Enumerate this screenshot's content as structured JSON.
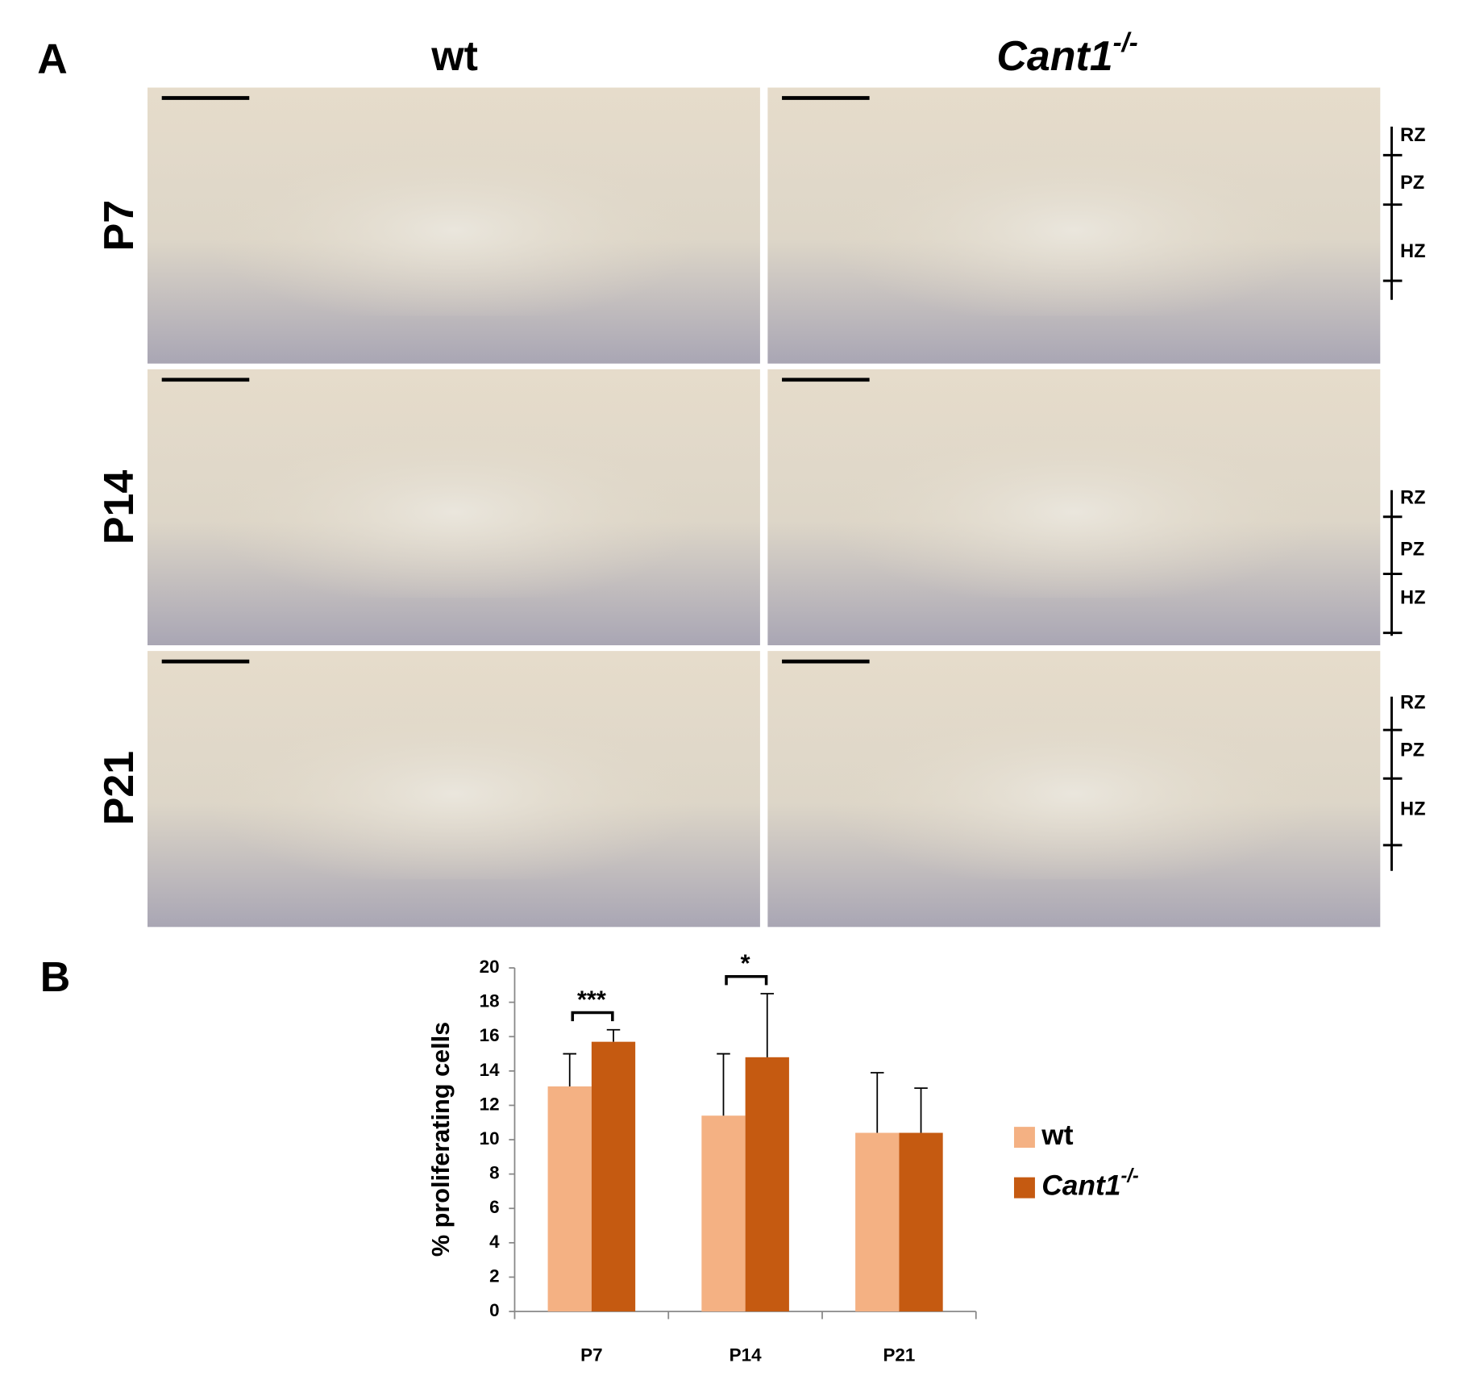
{
  "panel_a": {
    "label": "A",
    "columns": [
      {
        "text": "wt"
      },
      {
        "text": "Cant1",
        "sup": "-/-"
      }
    ],
    "rows": [
      "P7",
      "P14",
      "P21"
    ],
    "zones": [
      [
        "RZ",
        "PZ",
        "HZ"
      ],
      [
        "RZ",
        "PZ",
        "HZ"
      ],
      [
        "RZ",
        "PZ",
        "HZ"
      ]
    ]
  },
  "panel_b": {
    "label": "B"
  },
  "chart_data": {
    "type": "bar",
    "y_label": "% proliferating cells",
    "categories": [
      "P7",
      "P14",
      "P21"
    ],
    "series": [
      {
        "name": "wt",
        "color": "#f4b183",
        "values": [
          13.1,
          11.4,
          10.4
        ],
        "errors": [
          1.9,
          3.6,
          3.5
        ]
      },
      {
        "name": "Cant1",
        "name_superscript": "-/-",
        "color": "#c55a11",
        "values": [
          15.7,
          14.8,
          10.4
        ],
        "errors": [
          0.7,
          3.7,
          2.6
        ]
      }
    ],
    "significance": [
      "***",
      "*",
      null
    ],
    "ylim": [
      0,
      20
    ],
    "yticks": [
      0,
      2,
      4,
      6,
      8,
      10,
      12,
      14,
      16,
      18,
      20
    ],
    "legend": "right"
  }
}
